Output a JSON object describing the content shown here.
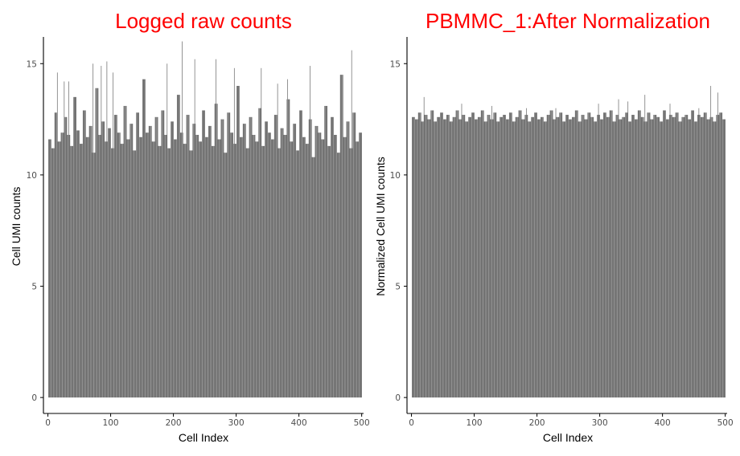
{
  "colors": {
    "bar": "#595959",
    "title": "#ff0000",
    "axis": "#000000",
    "tick_text": "#4d4d4d"
  },
  "chart_data": [
    {
      "type": "bar",
      "title": "Logged raw counts",
      "xlabel": "Cell Index",
      "ylabel": "Cell UMI counts",
      "xlim": [
        -2,
        503
      ],
      "ylim": [
        -0.5,
        16.2
      ],
      "xticks": [
        0,
        100,
        200,
        300,
        400,
        500
      ],
      "yticks": [
        0,
        5,
        10,
        15
      ],
      "grid": false,
      "legend": "none",
      "n_points": 500,
      "values_sample_every_5_cells": [
        11.6,
        11.2,
        12.8,
        11.5,
        11.9,
        12.6,
        11.8,
        11.3,
        13.5,
        12.0,
        11.4,
        12.9,
        11.7,
        12.2,
        11.0,
        13.9,
        11.8,
        12.4,
        11.5,
        12.1,
        11.2,
        12.7,
        11.9,
        11.4,
        13.1,
        11.6,
        12.3,
        11.1,
        12.8,
        11.7,
        14.3,
        11.9,
        12.2,
        11.5,
        12.6,
        11.3,
        12.9,
        11.8,
        11.2,
        12.4,
        11.6,
        13.6,
        11.9,
        11.4,
        12.7,
        11.1,
        12.3,
        11.8,
        11.5,
        12.9,
        11.7,
        12.2,
        11.3,
        13.2,
        11.6,
        12.5,
        11.0,
        12.8,
        11.9,
        11.4,
        14.0,
        11.7,
        12.3,
        11.2,
        12.6,
        11.8,
        11.5,
        13.0,
        11.3,
        12.4,
        11.9,
        11.6,
        12.7,
        11.2,
        12.1,
        11.8,
        13.4,
        11.5,
        12.3,
        11.1,
        12.9,
        11.7,
        11.4,
        12.5,
        10.8,
        12.2,
        11.9,
        11.6,
        13.1,
        11.3,
        12.6,
        11.8,
        11.0,
        14.5,
        11.7,
        12.4,
        11.2,
        12.8,
        11.5,
        11.9
      ],
      "peak_cells": {
        "15": 14.6,
        "26": 14.2,
        "33": 14.2,
        "72": 15.0,
        "85": 14.9,
        "94": 15.1,
        "104": 14.6,
        "190": 15.0,
        "214": 16.0,
        "234": 15.2,
        "268": 15.2,
        "297": 14.8,
        "340": 14.8,
        "366": 14.1,
        "382": 14.3,
        "418": 14.9,
        "484": 15.6
      }
    },
    {
      "type": "bar",
      "title": "PBMMC_1:After Normalization",
      "xlabel": "Cell Index",
      "ylabel": "Normalized Cell UMI counts",
      "xlim": [
        -2,
        503
      ],
      "ylim": [
        -0.5,
        16.2
      ],
      "xticks": [
        0,
        100,
        200,
        300,
        400,
        500
      ],
      "yticks": [
        0,
        5,
        10,
        15
      ],
      "grid": false,
      "legend": "none",
      "n_points": 500,
      "values_sample_every_5_cells": [
        12.6,
        12.5,
        12.8,
        12.4,
        12.7,
        12.5,
        12.9,
        12.4,
        12.6,
        12.8,
        12.5,
        12.7,
        12.4,
        12.6,
        12.9,
        12.5,
        12.7,
        12.4,
        12.6,
        12.8,
        12.5,
        12.6,
        12.9,
        12.4,
        12.7,
        12.5,
        12.8,
        12.4,
        12.6,
        12.7,
        12.5,
        12.8,
        12.4,
        12.6,
        12.9,
        12.5,
        12.7,
        12.4,
        12.6,
        12.8,
        12.5,
        12.6,
        12.4,
        12.7,
        12.9,
        12.5,
        12.6,
        12.8,
        12.4,
        12.7,
        12.5,
        12.6,
        12.9,
        12.4,
        12.7,
        12.5,
        12.8,
        12.6,
        12.4,
        12.7,
        12.5,
        12.8,
        12.6,
        12.9,
        12.4,
        12.7,
        12.5,
        12.6,
        12.8,
        12.4,
        12.7,
        12.5,
        12.9,
        12.6,
        12.4,
        12.8,
        12.5,
        12.7,
        12.6,
        12.4,
        12.9,
        12.5,
        12.7,
        12.6,
        12.8,
        12.4,
        12.6,
        12.7,
        12.5,
        12.9,
        12.4,
        12.7,
        12.6,
        12.8,
        12.5,
        12.6,
        12.4,
        12.7,
        12.8,
        12.5
      ],
      "peak_cells": {
        "20": 13.5,
        "80": 13.2,
        "128": 13.1,
        "183": 13.0,
        "230": 13.0,
        "298": 13.2,
        "330": 13.4,
        "345": 13.3,
        "372": 13.6,
        "412": 13.2,
        "458": 13.0,
        "477": 14.0,
        "488": 13.7
      }
    }
  ]
}
